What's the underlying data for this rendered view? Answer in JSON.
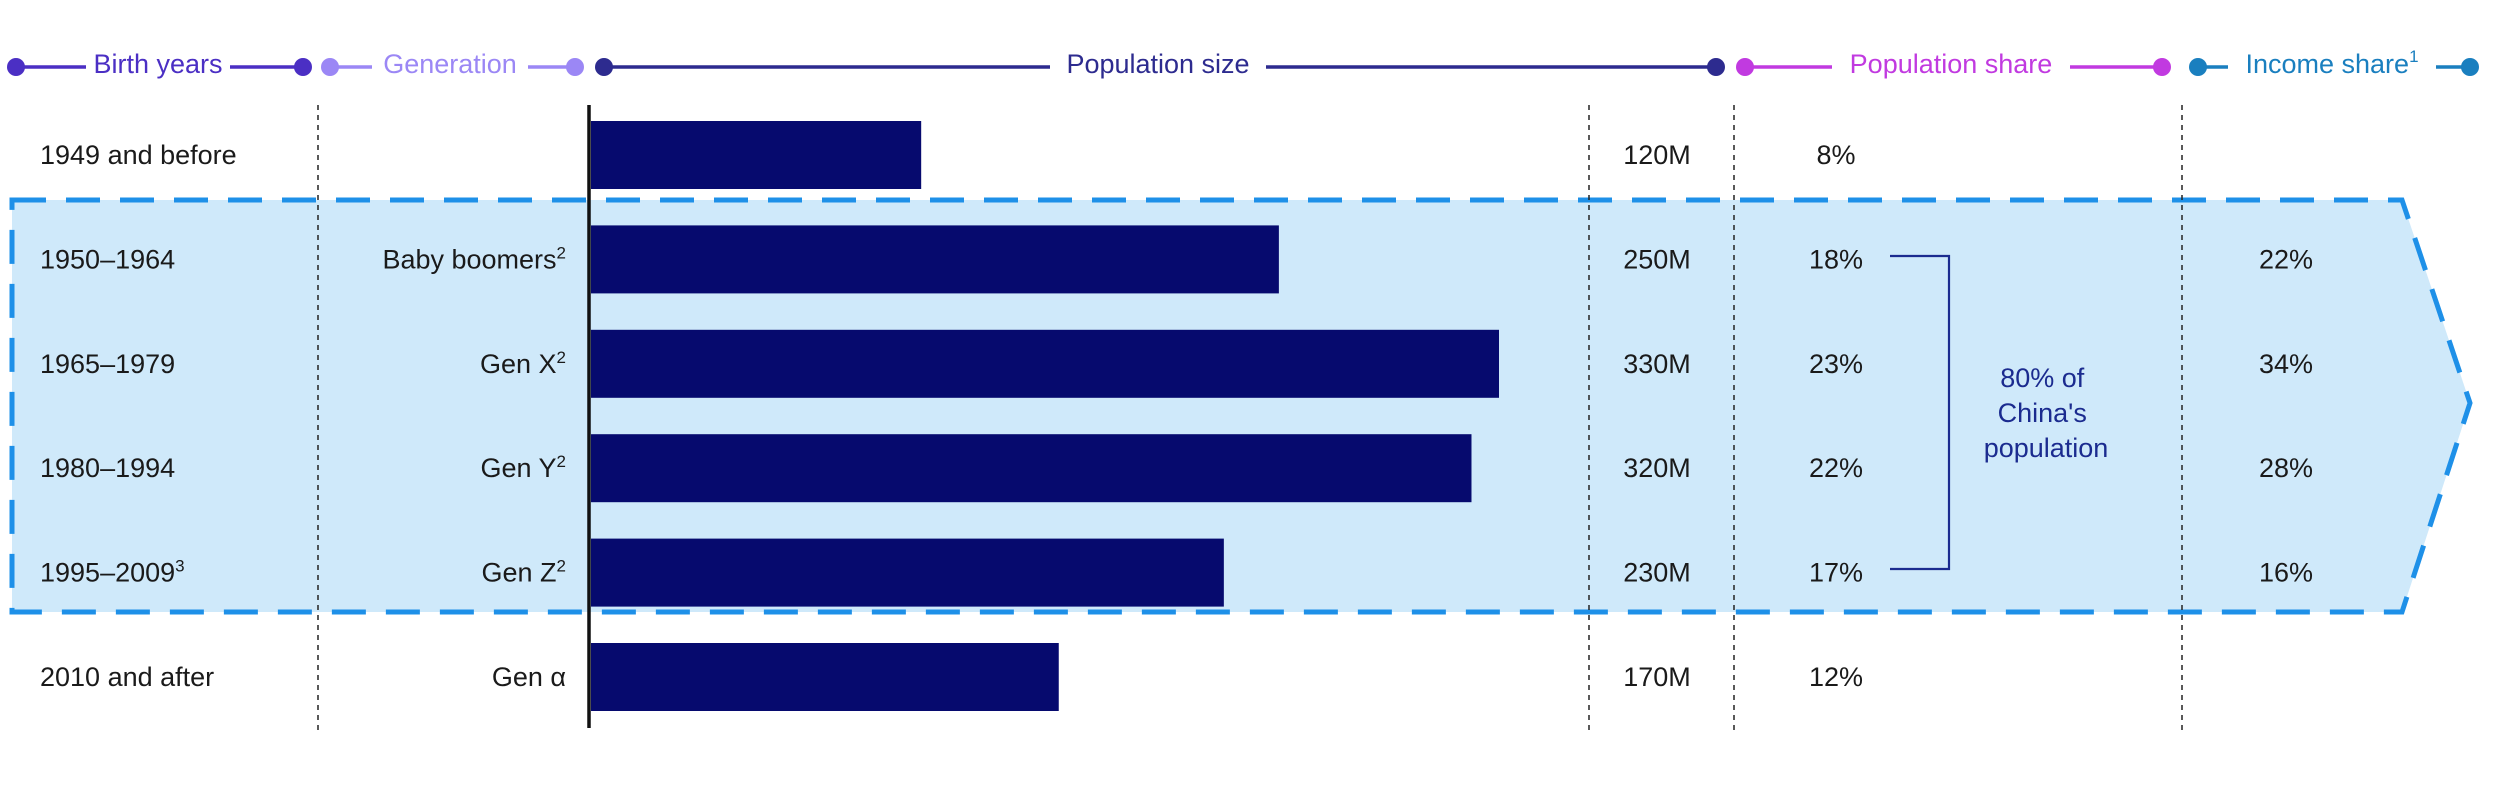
{
  "headers": {
    "birth_years": "Birth years",
    "generation": "Generation",
    "population_size": "Population size",
    "population_share": "Population share",
    "income_share": "Income share",
    "income_share_sup": "1"
  },
  "bracket_label": [
    "80% of",
    "China's",
    "population"
  ],
  "colors": {
    "birth_years": "#4b2fc4",
    "generation": "#9b87f5",
    "population_size": "#2d2b8f",
    "population_share": "#c13ae0",
    "income_share": "#1a7fbf",
    "bar": "#060a6e",
    "highlight_fill": "#cfe9fa",
    "highlight_border": "#1e90e8",
    "bracket": "#1b2b8f"
  },
  "chart_data": {
    "type": "bar",
    "orientation": "horizontal",
    "categories": [
      "1949 and before",
      "1950–1964",
      "1965–1979",
      "1980–1994",
      "1995–2009",
      "2010 and after"
    ],
    "category_sup": [
      "",
      "",
      "",
      "",
      "3",
      ""
    ],
    "generations": [
      "",
      "Baby boomers",
      "Gen X",
      "Gen Y",
      "Gen Z",
      "Gen α"
    ],
    "generation_sup": [
      "",
      "2",
      "2",
      "2",
      "2",
      ""
    ],
    "series": [
      {
        "name": "Population size",
        "values": [
          120,
          250,
          330,
          320,
          230,
          170
        ],
        "unit": "M"
      }
    ],
    "value_labels": [
      "120M",
      "250M",
      "330M",
      "320M",
      "230M",
      "170M"
    ],
    "population_share": [
      "8%",
      "18%",
      "23%",
      "22%",
      "17%",
      "12%"
    ],
    "income_share": [
      "",
      "22%",
      "34%",
      "28%",
      "16%",
      ""
    ],
    "highlighted_rows": [
      1,
      2,
      3,
      4
    ],
    "xlim": [
      0,
      330
    ]
  }
}
